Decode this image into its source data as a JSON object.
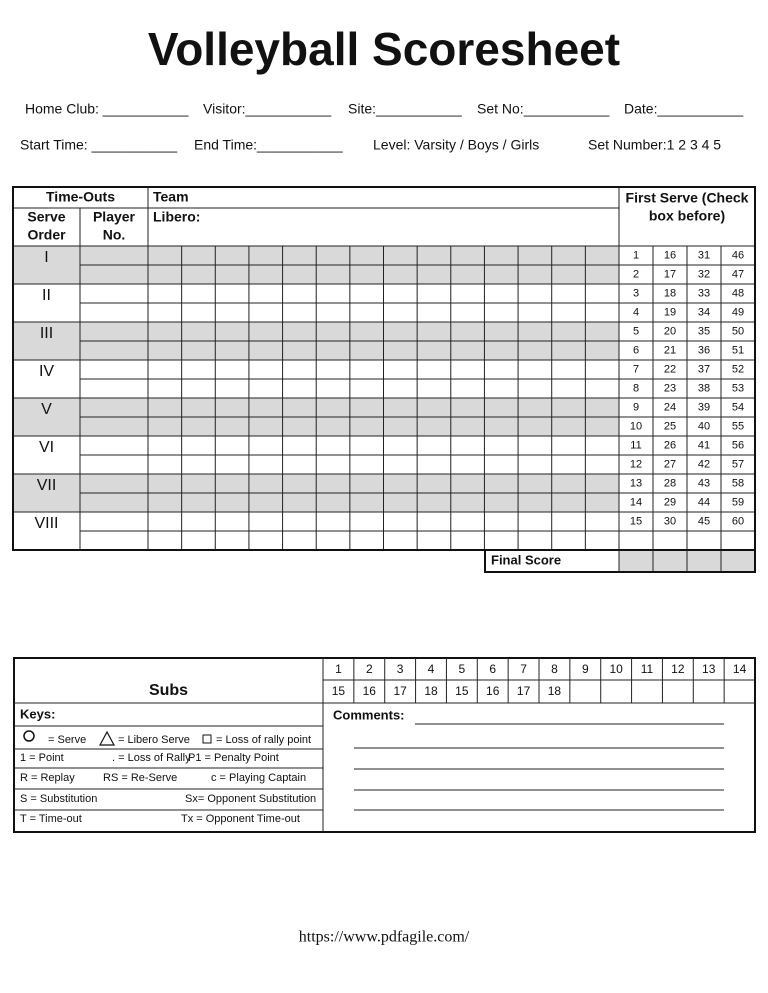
{
  "title": "Volleyball Scoresheet",
  "header": {
    "row1": [
      "Home Club: ___________",
      "Visitor:___________",
      "Site:___________",
      "Set No:___________",
      "Date:___________"
    ],
    "row2": [
      "Start Time: ___________",
      "End Time:___________",
      "Level: Varsity / Boys / Girls",
      "Set Number:1  2  3  4  5"
    ]
  },
  "main_table": {
    "time_outs": "Time-Outs",
    "team": "Team",
    "libero": "Libero:",
    "serve_order": [
      "Serve",
      "Order"
    ],
    "player_no": [
      "Player",
      "No."
    ],
    "rotations": [
      "I",
      "II",
      "III",
      "IV",
      "V",
      "VI",
      "VII",
      "VIII"
    ],
    "first_serve_title": [
      "First Serve (Check",
      "box  before)"
    ],
    "first_serve_numbers": [
      [
        1,
        16,
        31,
        46
      ],
      [
        2,
        17,
        32,
        47
      ],
      [
        3,
        18,
        33,
        48
      ],
      [
        4,
        19,
        34,
        49
      ],
      [
        5,
        20,
        35,
        50
      ],
      [
        6,
        21,
        36,
        51
      ],
      [
        7,
        22,
        37,
        52
      ],
      [
        8,
        23,
        38,
        53
      ],
      [
        9,
        24,
        39,
        54
      ],
      [
        10,
        25,
        40,
        55
      ],
      [
        11,
        26,
        41,
        56
      ],
      [
        12,
        27,
        42,
        57
      ],
      [
        13,
        28,
        43,
        58
      ],
      [
        14,
        29,
        44,
        59
      ],
      [
        15,
        30,
        45,
        60
      ]
    ],
    "final_score": "Final Score"
  },
  "subs_table": {
    "title": "Subs",
    "top_numbers": [
      1,
      2,
      3,
      4,
      5,
      6,
      7,
      8,
      9,
      10,
      11,
      12,
      13,
      14
    ],
    "bottom_numbers": [
      15,
      16,
      17,
      18,
      15,
      16,
      17,
      18
    ]
  },
  "keys": {
    "title": "Keys:",
    "rows": [
      [
        "= Serve",
        "= Libero Serve",
        "= Loss of rally point"
      ],
      [
        "1 = Point",
        ". = Loss of Rally",
        "P1 = Penalty Point"
      ],
      [
        "R = Replay",
        "RS = Re-Serve",
        "c = Playing Captain"
      ],
      [
        "S = Substitution",
        "Sx= Opponent Substitution"
      ],
      [
        "T = Time-out",
        "Tx = Opponent Time-out"
      ]
    ]
  },
  "comments": "Comments:",
  "footer": "https://www.pdfagile.com/"
}
